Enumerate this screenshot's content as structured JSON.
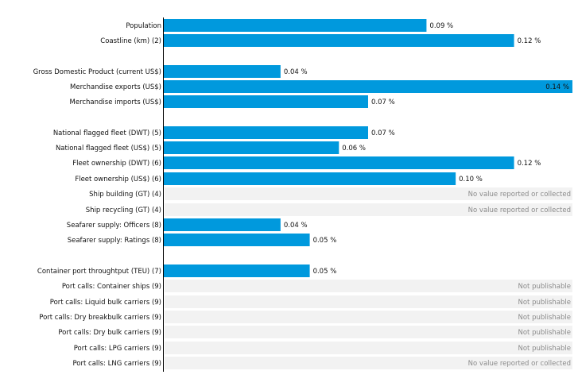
{
  "chart_data": {
    "type": "bar",
    "orientation": "horizontal",
    "unit": "%",
    "xlim": [
      0,
      0.14
    ],
    "colors": {
      "bar": "#0099dd",
      "na_band": "#f2f2f2",
      "axis": "#000000"
    },
    "rows": [
      {
        "category": "Population",
        "value": 0.09,
        "label": "0.09 %"
      },
      {
        "category": "Coastline (km) (2)",
        "value": 0.12,
        "label": "0.12 %"
      },
      {
        "category": "Gross Domestic Product (current US$)",
        "value": 0.04,
        "label": "0.04 %"
      },
      {
        "category": "Merchandise exports (US$)",
        "value": 0.14,
        "label": "0.14 %"
      },
      {
        "category": "Merchandise imports (US$)",
        "value": 0.07,
        "label": "0.07 %"
      },
      {
        "category": "National flagged fleet (DWT) (5)",
        "value": 0.07,
        "label": "0.07 %"
      },
      {
        "category": "National flagged fleet (US$) (5)",
        "value": 0.06,
        "label": "0.06 %"
      },
      {
        "category": "Fleet ownership (DWT) (6)",
        "value": 0.12,
        "label": "0.12 %"
      },
      {
        "category": "Fleet ownership (US$) (6)",
        "value": 0.1,
        "label": "0.10 %"
      },
      {
        "category": "Ship building (GT) (4)",
        "value": null,
        "label": "No value reported or collected"
      },
      {
        "category": "Ship recycling (GT) (4)",
        "value": null,
        "label": "No value reported or collected"
      },
      {
        "category": "Seafarer supply: Officers (8)",
        "value": 0.04,
        "label": "0.04 %"
      },
      {
        "category": "Seafarer supply: Ratings (8)",
        "value": 0.05,
        "label": "0.05 %"
      },
      {
        "category": "Container port throughtput (TEU) (7)",
        "value": 0.05,
        "label": "0.05 %"
      },
      {
        "category": "Port calls: Container ships (9)",
        "value": null,
        "label": "Not publishable"
      },
      {
        "category": "Port calls: Liquid bulk carriers (9)",
        "value": null,
        "label": "Not publishable"
      },
      {
        "category": "Port calls: Dry breakbulk carriers (9)",
        "value": null,
        "label": "Not publishable"
      },
      {
        "category": "Port calls: Dry bulk carriers (9)",
        "value": null,
        "label": "Not publishable"
      },
      {
        "category": "Port calls: LPG carriers (9)",
        "value": null,
        "label": "Not publishable"
      },
      {
        "category": "Port calls: LNG carriers (9)",
        "value": null,
        "label": "No value reported or collected"
      }
    ]
  }
}
